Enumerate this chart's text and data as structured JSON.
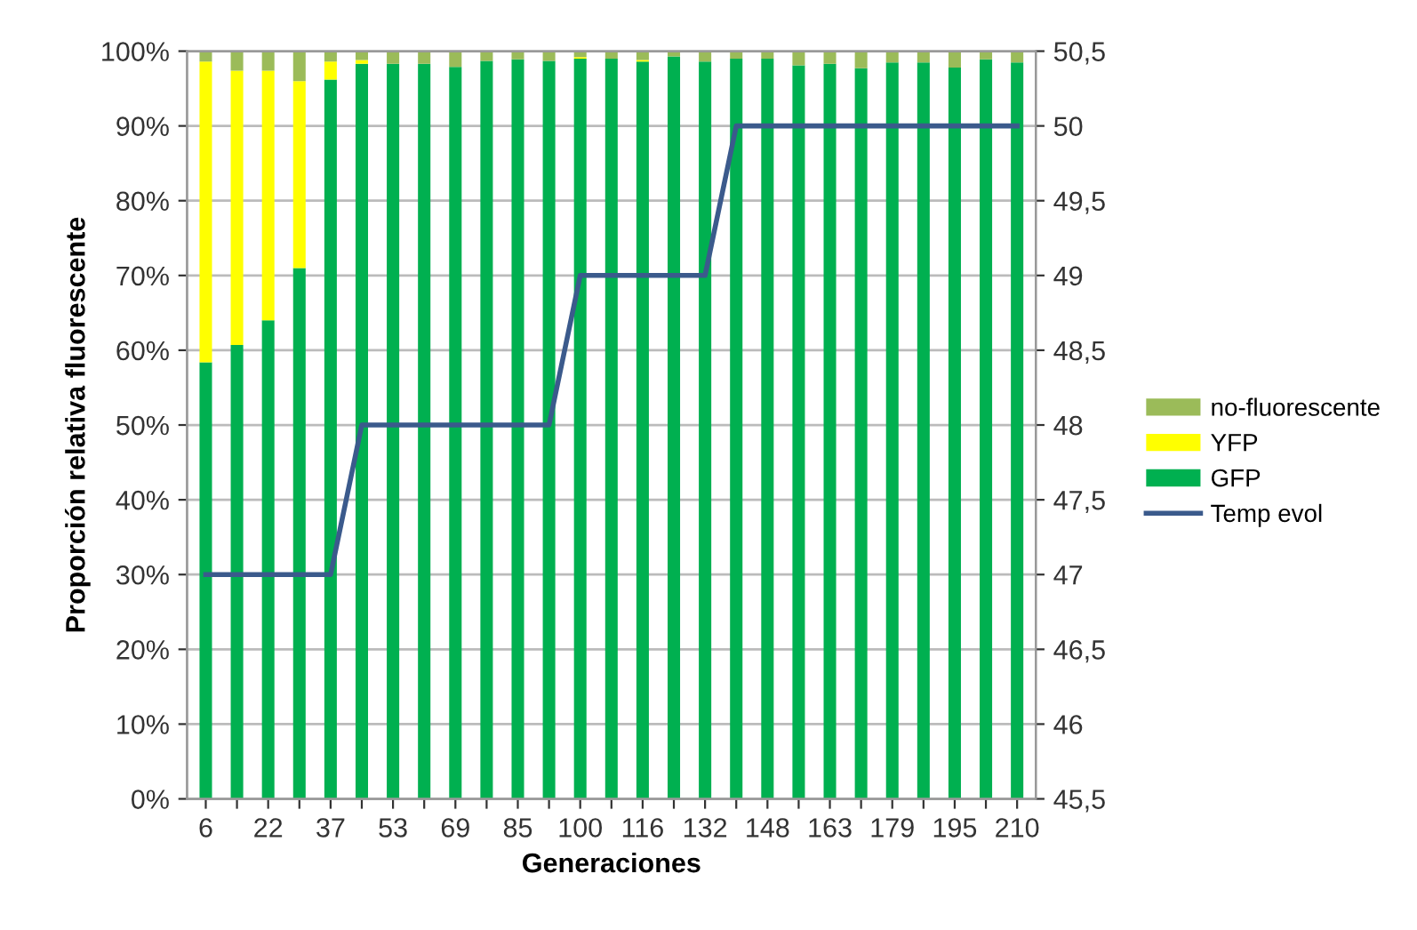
{
  "chart_data": {
    "type": "bar",
    "stacked": true,
    "xlabel": "Generaciones",
    "ylabel": "Proporción relativa fluorescente",
    "categories": [
      "6",
      null,
      "22",
      null,
      "37",
      null,
      "53",
      null,
      "69",
      null,
      "85",
      null,
      "100",
      null,
      "116",
      null,
      "132",
      null,
      "148",
      null,
      "163",
      null,
      "179",
      null,
      "195",
      null,
      "210"
    ],
    "series": [
      {
        "name": "GFP",
        "color": "#00b050",
        "values": [
          58.4,
          60.7,
          64.0,
          71.0,
          96.2,
          98.3,
          98.3,
          98.3,
          97.9,
          98.7,
          98.9,
          98.7,
          99.0,
          99.0,
          98.6,
          99.3,
          98.6,
          99.0,
          99.0,
          98.1,
          98.3,
          97.7,
          98.5,
          98.5,
          97.8,
          98.9,
          98.5
        ]
      },
      {
        "name": "YFP",
        "color": "#ffff00",
        "values": [
          40.2,
          36.7,
          33.4,
          25.0,
          2.4,
          0.5,
          0,
          0,
          0,
          0,
          0,
          0,
          0.2,
          0,
          0.2,
          0,
          0,
          0,
          0,
          0,
          0,
          0,
          0,
          0,
          0,
          0,
          0
        ]
      },
      {
        "name": "no-fluorescente",
        "color": "#9bbb59",
        "values": [
          1.4,
          2.6,
          2.6,
          4.0,
          1.4,
          1.2,
          1.7,
          1.7,
          2.1,
          1.3,
          1.1,
          1.3,
          0.8,
          1.0,
          1.2,
          0.7,
          1.4,
          1.0,
          1.0,
          1.9,
          1.7,
          2.3,
          1.5,
          1.5,
          2.2,
          1.1,
          1.5
        ]
      },
      {
        "name": "Temp evol",
        "type": "line",
        "axis": "y2",
        "color": "#3b5a8c",
        "values": [
          47,
          47,
          47,
          47,
          47,
          48,
          48,
          48,
          48,
          48,
          48,
          48,
          49,
          49,
          49,
          49,
          49,
          50,
          50,
          50,
          50,
          50,
          50,
          50,
          50,
          50,
          50
        ]
      }
    ],
    "ylim": [
      0,
      100
    ],
    "yticks": [
      {
        "value": 0,
        "label": "0%"
      },
      {
        "value": 10,
        "label": "10%"
      },
      {
        "value": 20,
        "label": "20%"
      },
      {
        "value": 30,
        "label": "30%"
      },
      {
        "value": 40,
        "label": "40%"
      },
      {
        "value": 50,
        "label": "50%"
      },
      {
        "value": 60,
        "label": "60%"
      },
      {
        "value": 70,
        "label": "70%"
      },
      {
        "value": 80,
        "label": "80%"
      },
      {
        "value": 90,
        "label": "90%"
      },
      {
        "value": 100,
        "label": "100%"
      }
    ],
    "y2lim": [
      45.5,
      50.5
    ],
    "y2ticks": [
      {
        "value": 45.5,
        "label": "45,5"
      },
      {
        "value": 46,
        "label": "46"
      },
      {
        "value": 46.5,
        "label": "46,5"
      },
      {
        "value": 47,
        "label": "47"
      },
      {
        "value": 47.5,
        "label": "47,5"
      },
      {
        "value": 48,
        "label": "48"
      },
      {
        "value": 48.5,
        "label": "48,5"
      },
      {
        "value": 49,
        "label": "49"
      },
      {
        "value": 49.5,
        "label": "49,5"
      },
      {
        "value": 50,
        "label": "50"
      },
      {
        "value": 50.5,
        "label": "50,5"
      }
    ],
    "grid": "y",
    "legend": "right",
    "line_style": "solid",
    "marker": "none"
  }
}
